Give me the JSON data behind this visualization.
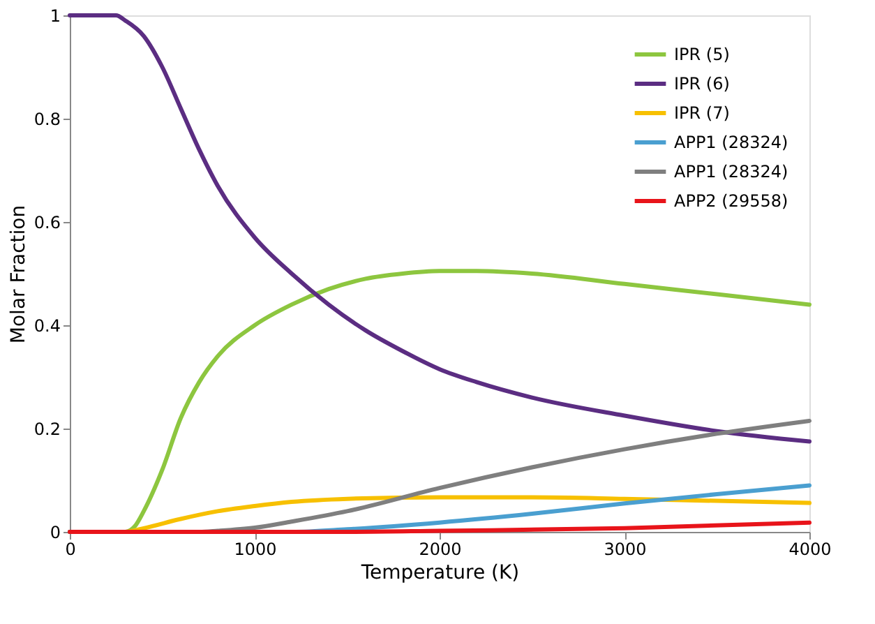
{
  "chart_data": {
    "type": "line",
    "xlabel": "Temperature (K)",
    "ylabel": "Molar Fraction",
    "xlim": [
      0,
      4000
    ],
    "xticks": [
      0,
      1000,
      2000,
      3000,
      4000
    ],
    "ylim": [
      0,
      1
    ],
    "yticks": [
      0,
      0.2,
      0.4,
      0.6,
      0.8,
      1
    ],
    "grid": false,
    "legend": "top right",
    "series": [
      {
        "name": "IPR (5)",
        "color": "#8dc63f",
        "x": [
          0,
          300,
          350,
          400,
          500,
          600,
          700,
          800,
          1000,
          1200,
          1400,
          1600,
          1800,
          2000,
          2200,
          2500,
          3000,
          3500,
          4000
        ],
        "values": [
          0,
          0,
          0.01,
          0.04,
          0.12,
          0.22,
          0.29,
          0.34,
          0.4,
          0.44,
          0.47,
          0.49,
          0.5,
          0.505,
          0.505,
          0.5,
          0.48,
          0.46,
          0.44
        ]
      },
      {
        "name": "IPR (6)",
        "color": "#5b2d82",
        "x": [
          0,
          250,
          300,
          400,
          500,
          600,
          700,
          800,
          1000,
          1200,
          1400,
          1600,
          1800,
          2000,
          2200,
          2500,
          3000,
          3500,
          4000
        ],
        "values": [
          1,
          1,
          0.99,
          0.96,
          0.9,
          0.82,
          0.74,
          0.67,
          0.57,
          0.5,
          0.44,
          0.39,
          0.35,
          0.315,
          0.29,
          0.26,
          0.225,
          0.195,
          0.175
        ]
      },
      {
        "name": "IPR (7)",
        "color": "#f7c000",
        "x": [
          0,
          300,
          400,
          600,
          800,
          1000,
          1200,
          1500,
          2000,
          2500,
          3000,
          3500,
          4000
        ],
        "values": [
          0,
          0,
          0.007,
          0.025,
          0.04,
          0.05,
          0.058,
          0.064,
          0.067,
          0.067,
          0.064,
          0.06,
          0.056
        ]
      },
      {
        "name": "APP1 (28324)",
        "color": "#4a9fd0",
        "x": [
          0,
          1200,
          1500,
          2000,
          2500,
          3000,
          3500,
          4000
        ],
        "values": [
          0,
          0,
          0.005,
          0.018,
          0.035,
          0.055,
          0.073,
          0.09
        ]
      },
      {
        "name": "APP1 (28324)",
        "color": "#7f7f7f",
        "x": [
          0,
          700,
          800,
          1000,
          1200,
          1500,
          2000,
          2500,
          3000,
          3500,
          4000
        ],
        "values": [
          0,
          0,
          0.002,
          0.008,
          0.02,
          0.04,
          0.085,
          0.125,
          0.16,
          0.19,
          0.215
        ]
      },
      {
        "name": "APP2 (29558)",
        "color": "#e8141a",
        "x": [
          0,
          1500,
          2000,
          3000,
          4000
        ],
        "values": [
          0,
          0,
          0.002,
          0.007,
          0.018
        ]
      }
    ]
  }
}
